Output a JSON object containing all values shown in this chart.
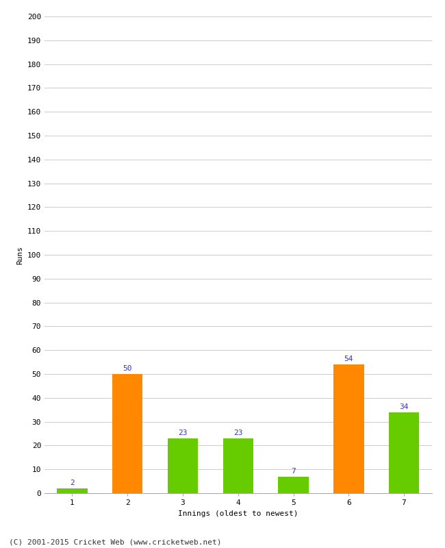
{
  "innings": [
    1,
    2,
    3,
    4,
    5,
    6,
    7
  ],
  "values": [
    2,
    50,
    23,
    23,
    7,
    54,
    34
  ],
  "colors": [
    "#66cc00",
    "#ff8800",
    "#66cc00",
    "#66cc00",
    "#66cc00",
    "#ff8800",
    "#66cc00"
  ],
  "xlabel": "Innings (oldest to newest)",
  "ylabel": "Runs",
  "ylim": [
    0,
    200
  ],
  "yticks": [
    0,
    10,
    20,
    30,
    40,
    50,
    60,
    70,
    80,
    90,
    100,
    110,
    120,
    130,
    140,
    150,
    160,
    170,
    180,
    190,
    200
  ],
  "label_color": "#3333cc",
  "label_fontsize": 8,
  "tick_fontsize": 8,
  "xlabel_fontsize": 8,
  "ylabel_fontsize": 8,
  "footer": "(C) 2001-2015 Cricket Web (www.cricketweb.net)",
  "footer_fontsize": 8,
  "background_color": "#ffffff",
  "grid_color": "#cccccc",
  "bar_width": 0.55
}
